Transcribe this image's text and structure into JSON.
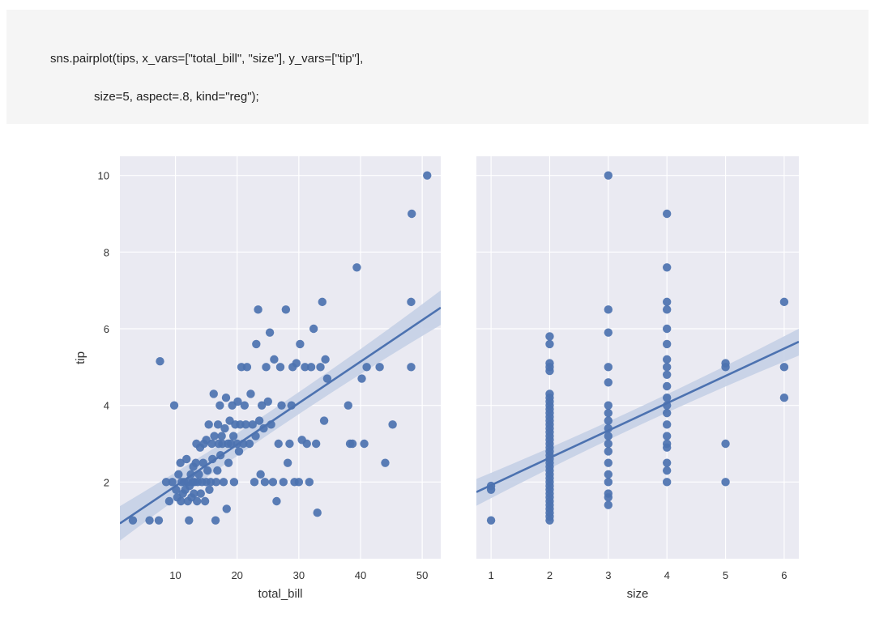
{
  "code": {
    "line1": "sns.pairplot(tips, x_vars=[\"total_bill\", \"size\"], y_vars=[\"tip\"],",
    "line2": "size=5, aspect=.8, kind=\"reg\");"
  },
  "colors": {
    "panel_bg": "#EAEAF2",
    "grid": "#ffffff",
    "point": "#4C72B0",
    "ci_band": "#C5D0E6"
  },
  "chart_data": [
    {
      "type": "scatter",
      "xlabel": "total_bill",
      "ylabel": "tip",
      "xlim": [
        1.0,
        53.0
      ],
      "ylim": [
        0.0,
        10.5
      ],
      "xticks": [
        10,
        20,
        30,
        40,
        50
      ],
      "yticks": [
        2,
        4,
        6,
        8,
        10
      ],
      "grid": true,
      "regression": {
        "x": [
          1.0,
          53.0
        ],
        "y": [
          0.92,
          6.55
        ],
        "ci_upper_end": 7.0,
        "ci_lower_end": 6.1
      },
      "points": [
        [
          3.1,
          1.0
        ],
        [
          5.8,
          1.0
        ],
        [
          7.3,
          1.0
        ],
        [
          7.5,
          5.15
        ],
        [
          8.5,
          2.0
        ],
        [
          9.0,
          1.5
        ],
        [
          9.5,
          2.0
        ],
        [
          9.8,
          4.0
        ],
        [
          10.1,
          1.8
        ],
        [
          10.3,
          1.6
        ],
        [
          10.5,
          2.2
        ],
        [
          10.8,
          2.5
        ],
        [
          10.9,
          1.5
        ],
        [
          11.0,
          2.0
        ],
        [
          11.2,
          1.7
        ],
        [
          11.4,
          2.0
        ],
        [
          11.6,
          1.8
        ],
        [
          11.8,
          2.6
        ],
        [
          12.0,
          1.5
        ],
        [
          12.0,
          2.0
        ],
        [
          12.2,
          1.0
        ],
        [
          12.3,
          1.9
        ],
        [
          12.5,
          2.2
        ],
        [
          12.6,
          1.6
        ],
        [
          12.8,
          2.0
        ],
        [
          12.9,
          2.4
        ],
        [
          13.0,
          1.7
        ],
        [
          13.1,
          2.0
        ],
        [
          13.3,
          2.5
        ],
        [
          13.4,
          3.0
        ],
        [
          13.5,
          1.5
        ],
        [
          13.6,
          2.0
        ],
        [
          13.8,
          2.2
        ],
        [
          14.0,
          2.9
        ],
        [
          14.1,
          1.7
        ],
        [
          14.3,
          2.0
        ],
        [
          14.5,
          2.5
        ],
        [
          14.6,
          3.0
        ],
        [
          14.8,
          1.5
        ],
        [
          15.0,
          2.0
        ],
        [
          15.0,
          3.1
        ],
        [
          15.2,
          2.3
        ],
        [
          15.4,
          3.5
        ],
        [
          15.5,
          1.8
        ],
        [
          15.7,
          2.0
        ],
        [
          15.9,
          3.0
        ],
        [
          16.0,
          2.6
        ],
        [
          16.2,
          4.3
        ],
        [
          16.3,
          3.2
        ],
        [
          16.5,
          1.0
        ],
        [
          16.6,
          2.0
        ],
        [
          16.8,
          2.3
        ],
        [
          16.9,
          3.5
        ],
        [
          17.0,
          3.0
        ],
        [
          17.2,
          4.0
        ],
        [
          17.3,
          2.7
        ],
        [
          17.5,
          3.2
        ],
        [
          17.6,
          3.0
        ],
        [
          17.8,
          2.0
        ],
        [
          18.0,
          3.4
        ],
        [
          18.2,
          4.2
        ],
        [
          18.3,
          1.3
        ],
        [
          18.5,
          3.0
        ],
        [
          18.6,
          2.5
        ],
        [
          18.8,
          3.6
        ],
        [
          19.0,
          3.0
        ],
        [
          19.2,
          4.0
        ],
        [
          19.4,
          3.2
        ],
        [
          19.5,
          2.0
        ],
        [
          19.7,
          3.5
        ],
        [
          20.0,
          3.0
        ],
        [
          20.1,
          4.1
        ],
        [
          20.3,
          2.8
        ],
        [
          20.5,
          3.5
        ],
        [
          20.7,
          5.0
        ],
        [
          21.0,
          3.0
        ],
        [
          21.2,
          4.0
        ],
        [
          21.4,
          3.5
        ],
        [
          21.6,
          5.0
        ],
        [
          22.0,
          3.0
        ],
        [
          22.2,
          4.3
        ],
        [
          22.5,
          3.5
        ],
        [
          22.8,
          2.0
        ],
        [
          23.0,
          3.2
        ],
        [
          23.1,
          5.6
        ],
        [
          23.4,
          6.5
        ],
        [
          23.6,
          3.6
        ],
        [
          23.8,
          2.2
        ],
        [
          24.0,
          4.0
        ],
        [
          24.3,
          3.4
        ],
        [
          24.5,
          2.0
        ],
        [
          24.7,
          5.0
        ],
        [
          25.0,
          4.1
        ],
        [
          25.3,
          5.9
        ],
        [
          25.5,
          3.5
        ],
        [
          25.8,
          2.0
        ],
        [
          26.0,
          5.2
        ],
        [
          26.4,
          1.5
        ],
        [
          26.7,
          3.0
        ],
        [
          27.0,
          5.0
        ],
        [
          27.2,
          4.0
        ],
        [
          27.5,
          2.0
        ],
        [
          27.9,
          6.5
        ],
        [
          28.2,
          2.5
        ],
        [
          28.5,
          3.0
        ],
        [
          28.8,
          4.0
        ],
        [
          29.0,
          5.0
        ],
        [
          29.3,
          2.0
        ],
        [
          29.6,
          5.1
        ],
        [
          30.0,
          2.0
        ],
        [
          30.2,
          5.6
        ],
        [
          30.5,
          3.1
        ],
        [
          31.0,
          5.0
        ],
        [
          31.3,
          3.0
        ],
        [
          31.7,
          2.0
        ],
        [
          32.0,
          5.0
        ],
        [
          32.4,
          6.0
        ],
        [
          32.8,
          3.0
        ],
        [
          33.0,
          1.2
        ],
        [
          33.5,
          5.0
        ],
        [
          33.8,
          6.7
        ],
        [
          34.1,
          3.6
        ],
        [
          34.3,
          5.2
        ],
        [
          34.6,
          4.7
        ],
        [
          38.0,
          4.0
        ],
        [
          38.3,
          3.0
        ],
        [
          38.7,
          3.0
        ],
        [
          39.4,
          7.6
        ],
        [
          40.2,
          4.7
        ],
        [
          40.6,
          3.0
        ],
        [
          41.0,
          5.0
        ],
        [
          43.1,
          5.0
        ],
        [
          44.0,
          2.5
        ],
        [
          45.2,
          3.5
        ],
        [
          48.2,
          6.7
        ],
        [
          48.3,
          9.0
        ],
        [
          48.2,
          5.0
        ],
        [
          50.8,
          10.0
        ]
      ]
    },
    {
      "type": "scatter",
      "xlabel": "size",
      "ylabel": "",
      "xlim": [
        0.75,
        6.25
      ],
      "ylim": [
        0.0,
        10.5
      ],
      "xticks": [
        1,
        2,
        3,
        4,
        5,
        6
      ],
      "grid": true,
      "regression": {
        "x": [
          0.75,
          6.25
        ],
        "y": [
          1.74,
          5.66
        ],
        "ci_upper_end": 6.0,
        "ci_lower_end": 5.3
      },
      "points": [
        [
          1,
          1.0
        ],
        [
          1,
          1.8
        ],
        [
          1,
          1.9
        ],
        [
          2,
          1.0
        ],
        [
          2,
          1.1
        ],
        [
          2,
          1.2
        ],
        [
          2,
          1.3
        ],
        [
          2,
          1.4
        ],
        [
          2,
          1.5
        ],
        [
          2,
          1.6
        ],
        [
          2,
          1.7
        ],
        [
          2,
          1.8
        ],
        [
          2,
          1.9
        ],
        [
          2,
          2.0
        ],
        [
          2,
          2.1
        ],
        [
          2,
          2.2
        ],
        [
          2,
          2.3
        ],
        [
          2,
          2.4
        ],
        [
          2,
          2.5
        ],
        [
          2,
          2.6
        ],
        [
          2,
          2.7
        ],
        [
          2,
          2.8
        ],
        [
          2,
          2.9
        ],
        [
          2,
          3.0
        ],
        [
          2,
          3.1
        ],
        [
          2,
          3.2
        ],
        [
          2,
          3.3
        ],
        [
          2,
          3.4
        ],
        [
          2,
          3.5
        ],
        [
          2,
          3.6
        ],
        [
          2,
          3.7
        ],
        [
          2,
          3.8
        ],
        [
          2,
          3.9
        ],
        [
          2,
          4.0
        ],
        [
          2,
          4.1
        ],
        [
          2,
          4.2
        ],
        [
          2,
          4.3
        ],
        [
          2,
          4.9
        ],
        [
          2,
          5.0
        ],
        [
          2,
          5.1
        ],
        [
          2,
          5.6
        ],
        [
          2,
          5.8
        ],
        [
          3,
          1.4
        ],
        [
          3,
          1.6
        ],
        [
          3,
          1.7
        ],
        [
          3,
          2.0
        ],
        [
          3,
          2.2
        ],
        [
          3,
          2.5
        ],
        [
          3,
          2.8
        ],
        [
          3,
          3.0
        ],
        [
          3,
          3.2
        ],
        [
          3,
          3.4
        ],
        [
          3,
          3.6
        ],
        [
          3,
          3.8
        ],
        [
          3,
          4.0
        ],
        [
          3,
          4.6
        ],
        [
          3,
          5.0
        ],
        [
          3,
          5.9
        ],
        [
          3,
          6.5
        ],
        [
          3,
          10.0
        ],
        [
          4,
          2.0
        ],
        [
          4,
          2.3
        ],
        [
          4,
          2.5
        ],
        [
          4,
          2.9
        ],
        [
          4,
          3.0
        ],
        [
          4,
          3.2
        ],
        [
          4,
          3.5
        ],
        [
          4,
          3.8
        ],
        [
          4,
          4.0
        ],
        [
          4,
          4.2
        ],
        [
          4,
          4.5
        ],
        [
          4,
          4.8
        ],
        [
          4,
          5.0
        ],
        [
          4,
          5.2
        ],
        [
          4,
          5.6
        ],
        [
          4,
          6.0
        ],
        [
          4,
          6.5
        ],
        [
          4,
          6.7
        ],
        [
          4,
          7.6
        ],
        [
          4,
          9.0
        ],
        [
          5,
          2.0
        ],
        [
          5,
          3.0
        ],
        [
          5,
          5.0
        ],
        [
          5,
          5.1
        ],
        [
          6,
          4.2
        ],
        [
          6,
          5.0
        ],
        [
          6,
          6.7
        ]
      ]
    }
  ]
}
